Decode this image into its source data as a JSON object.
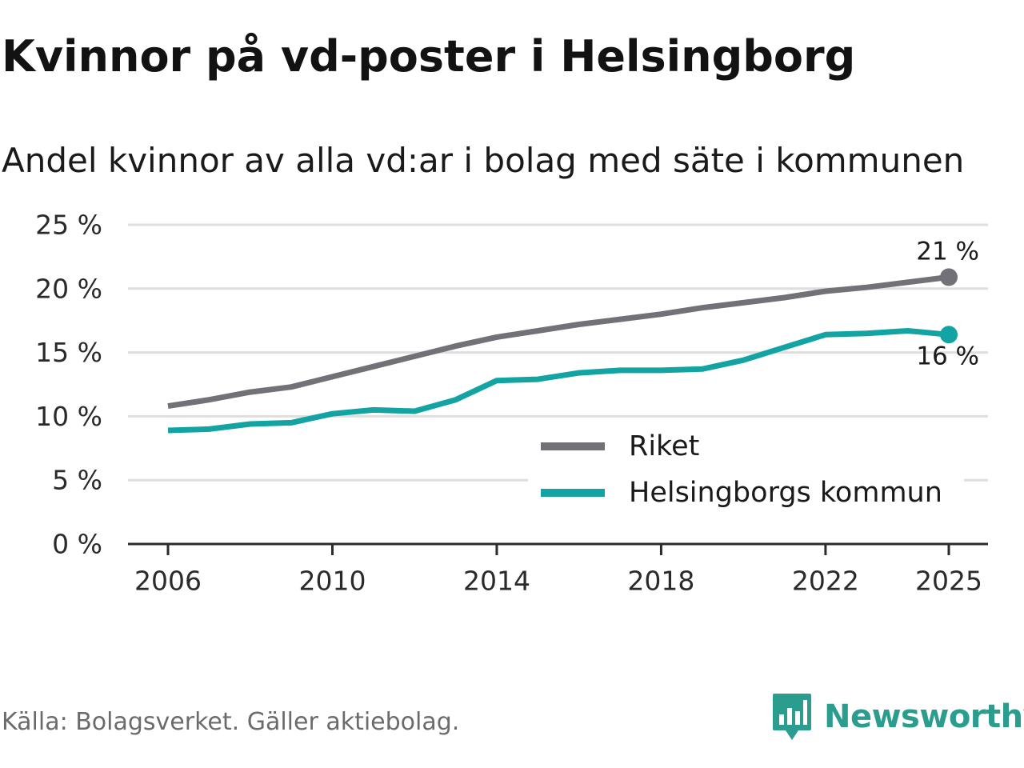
{
  "title": "Kvinnor på vd-poster i Helsingborg",
  "subtitle": "Andel kvinnor av alla vd:ar i bolag med säte i kommunen",
  "source": "Källa: Bolagsverket. Gäller aktiebolag.",
  "brand": {
    "name": "Newsworthy",
    "icon": "newsworthy-logo-icon",
    "color": "#2a9d8f"
  },
  "chart_data": {
    "type": "line",
    "title": "Kvinnor på vd-poster i Helsingborg",
    "subtitle": "Andel kvinnor av alla vd:ar i bolag med säte i kommunen",
    "xlabel": "",
    "ylabel": "",
    "xlim": [
      2006,
      2025
    ],
    "ylim": [
      0,
      25
    ],
    "x": [
      2006,
      2007,
      2008,
      2009,
      2010,
      2011,
      2012,
      2013,
      2014,
      2015,
      2016,
      2017,
      2018,
      2019,
      2020,
      2021,
      2022,
      2023,
      2024,
      2025
    ],
    "x_ticks": [
      2006,
      2010,
      2014,
      2018,
      2022,
      2025
    ],
    "x_tick_labels": [
      "2006",
      "2010",
      "2014",
      "2018",
      "2022",
      "2025"
    ],
    "y_ticks": [
      0,
      5,
      10,
      15,
      20,
      25
    ],
    "y_tick_labels": [
      "0 %",
      "5 %",
      "10 %",
      "15 %",
      "20 %",
      "25 %"
    ],
    "grid": true,
    "legend_position": "bottom-right",
    "series": [
      {
        "name": "Riket",
        "color": "#727178",
        "values": [
          10.8,
          11.3,
          11.9,
          12.3,
          13.1,
          13.9,
          14.7,
          15.5,
          16.2,
          16.7,
          17.2,
          17.6,
          18.0,
          18.5,
          18.9,
          19.3,
          19.8,
          20.1,
          20.5,
          20.9
        ],
        "end_label": "21 %"
      },
      {
        "name": "Helsingborgs kommun",
        "color": "#14a3a3",
        "values": [
          8.9,
          9.0,
          9.4,
          9.5,
          10.2,
          10.5,
          10.4,
          11.3,
          12.8,
          12.9,
          13.4,
          13.6,
          13.6,
          13.7,
          14.4,
          15.4,
          16.4,
          16.5,
          16.7,
          16.4
        ],
        "end_label": "16 %"
      }
    ]
  }
}
